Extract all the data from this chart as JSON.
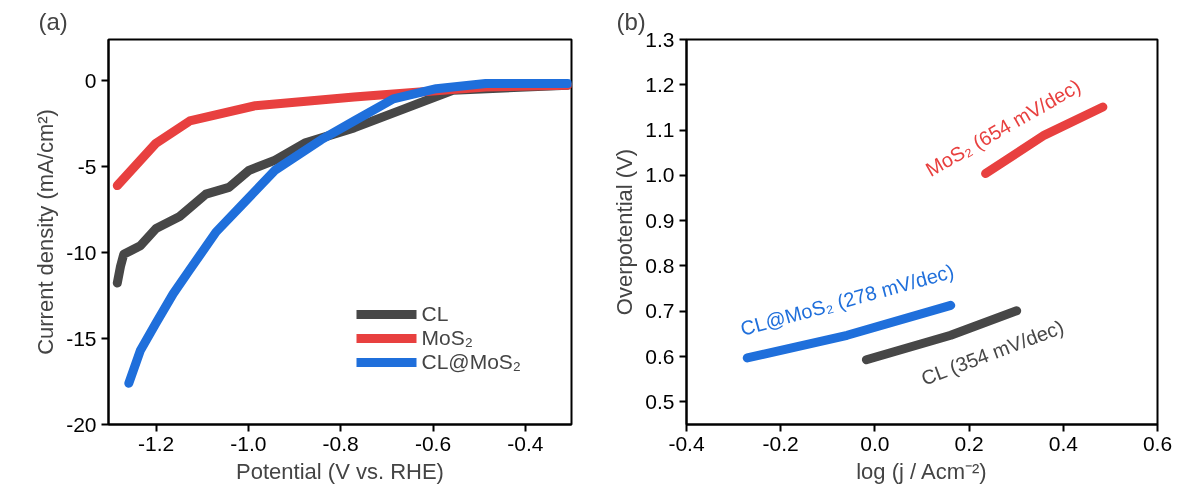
{
  "chart_data": [
    {
      "type": "line",
      "title": "(a)",
      "xlabel": "Potential (V vs. RHE)",
      "ylabel": "Current density (mA/cm²)",
      "xlim": [
        -1.303,
        -0.3
      ],
      "ylim": [
        -20,
        2.4
      ],
      "xticks": [
        -1.2,
        {
          "value": -1,
          "label": "-1.0"
        },
        -0.8,
        -0.6,
        -0.4
      ],
      "yticks": [
        0,
        -5,
        -10,
        -15,
        -20
      ],
      "legend": "bottom right",
      "grid": false,
      "marker": "none",
      "line_style": "solid",
      "series": [
        {
          "name": "CL",
          "color": "#474747",
          "x": [
            -1.284,
            -1.277,
            -1.27,
            -1.234,
            -1.2,
            -1.149,
            -1.092,
            -1.042,
            -0.999,
            -0.942,
            -0.878,
            -0.771,
            -0.664,
            -0.557,
            -0.308
          ],
          "values": [
            -11.77,
            -10.8,
            -10.1,
            -9.6,
            -8.6,
            -7.9,
            -6.6,
            -6.2,
            -5.22,
            -4.62,
            -3.63,
            -2.74,
            -1.65,
            -0.55,
            -0.26
          ]
        },
        {
          "name": "MoS₂",
          "color": "#e8403f",
          "x": [
            -1.284,
            -1.2,
            -1.127,
            -0.985,
            -0.771,
            -0.629,
            -0.486,
            -0.308
          ],
          "values": [
            -6.1,
            -3.63,
            -2.34,
            -1.45,
            -0.95,
            -0.65,
            -0.36,
            -0.26
          ]
        },
        {
          "name": "CL@MoS₂",
          "color": "#1f6fdb",
          "x": [
            -1.259,
            -1.234,
            -1.2,
            -1.163,
            -1.127,
            -1.07,
            -1.006,
            -0.942,
            -0.842,
            -0.771,
            -0.686,
            -0.593,
            -0.486,
            -0.308
          ],
          "values": [
            -17.6,
            -15.7,
            -14.1,
            -12.4,
            -11.0,
            -8.8,
            -7.0,
            -5.2,
            -3.43,
            -2.34,
            -1.05,
            -0.46,
            -0.16,
            -0.16
          ]
        }
      ]
    },
    {
      "type": "line",
      "title": "(b)",
      "xlabel": "log (j / Acm⁻²)",
      "ylabel": "Overpotential (V)",
      "xlim": [
        -0.4,
        0.6
      ],
      "ylim": [
        0.45,
        1.3
      ],
      "xticks": [
        -0.4,
        -0.2,
        {
          "value": 0,
          "label": "0.0"
        },
        0.2,
        0.4,
        0.6
      ],
      "yticks": [
        0.5,
        0.6,
        0.7,
        0.8,
        0.9,
        {
          "value": 1,
          "label": "1.0"
        },
        1.1,
        1.2,
        1.3
      ],
      "grid": false,
      "marker": "none",
      "line_style": "solid",
      "series": [
        {
          "color": "#474747",
          "x": [
            -0.018,
            0.161,
            0.301
          ],
          "values": [
            0.593,
            0.647,
            0.701
          ]
        },
        {
          "color": "#e8403f",
          "x": [
            0.235,
            0.36,
            0.484
          ],
          "values": [
            1.004,
            1.089,
            1.151
          ]
        },
        {
          "color": "#1f6fdb",
          "x": [
            -0.271,
            -0.059,
            0.161
          ],
          "values": [
            0.597,
            0.647,
            0.713
          ]
        }
      ],
      "annotations": [
        "CL (354 mV/dec)",
        "MoS₂ (654 mV/dec)",
        "CL@MoS₂ (278 mV/dec)"
      ]
    }
  ]
}
